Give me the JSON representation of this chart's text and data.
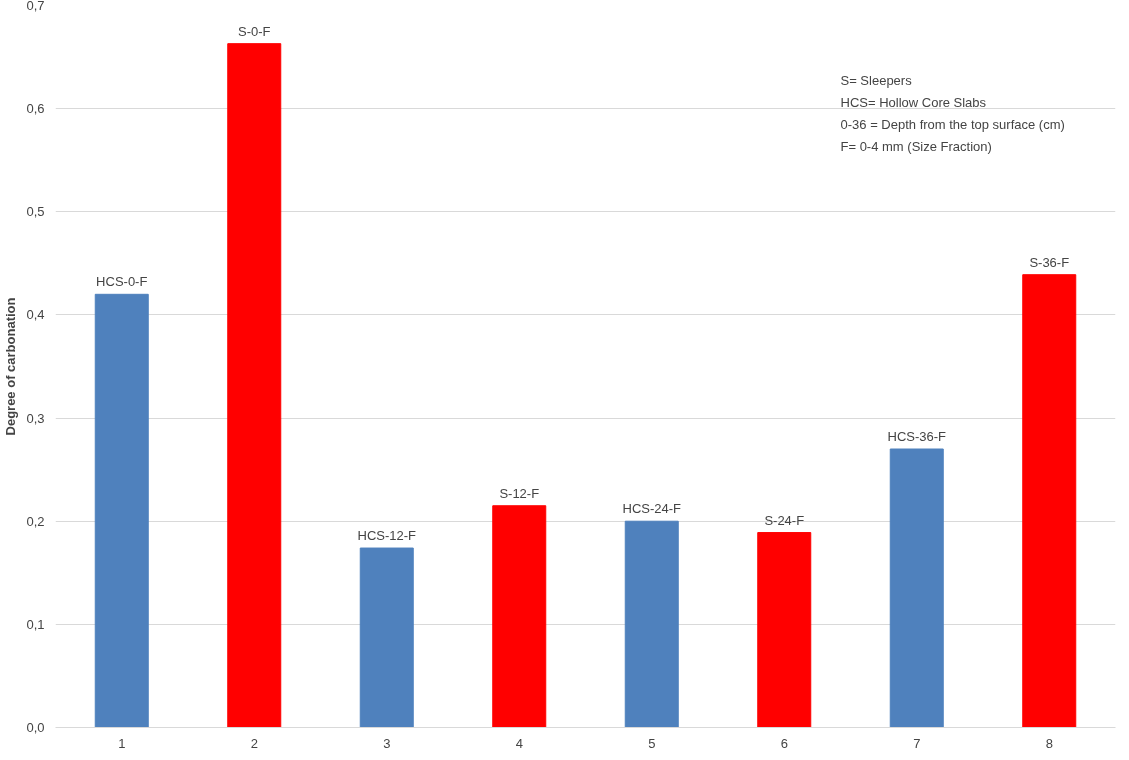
{
  "chart_data": {
    "type": "bar",
    "ylabel": "Degree of carbonation",
    "categories": [
      "1",
      "2",
      "3",
      "4",
      "5",
      "6",
      "7",
      "8"
    ],
    "values": [
      0.42,
      0.663,
      0.174,
      0.215,
      0.2,
      0.189,
      0.27,
      0.439
    ],
    "colors": [
      "#4f81bd",
      "#ff0000",
      "#4f81bd",
      "#ff0000",
      "#4f81bd",
      "#ff0000",
      "#4f81bd",
      "#ff0000"
    ],
    "ylim": [
      0,
      0.7
    ],
    "yticks": [
      {
        "value": 0,
        "label": "0,0"
      },
      {
        "value": 0.1,
        "label": "0,1"
      },
      {
        "value": 0.2,
        "label": "0,2"
      },
      {
        "value": 0.3,
        "label": "0,3"
      },
      {
        "value": 0.4,
        "label": "0,4"
      },
      {
        "value": 0.5,
        "label": "0,5"
      },
      {
        "value": 0.6,
        "label": "0,6"
      },
      {
        "value": 0.7,
        "label": "0,7"
      }
    ],
    "grid": "y",
    "annotations": [
      {
        "text": "HCS-0-F",
        "x": "1",
        "y": 0.42
      },
      {
        "text": "S-0-F",
        "x": "2",
        "y": 0.663
      },
      {
        "text": "HCS-12-F",
        "x": "3",
        "y": 0.174
      },
      {
        "text": "S-12-F",
        "x": "4",
        "y": 0.215
      },
      {
        "text": "HCS-24-F",
        "x": "5",
        "y": 0.2
      },
      {
        "text": "S-24-F",
        "x": "6",
        "y": 0.189
      },
      {
        "text": "HCS-36-F",
        "x": "7",
        "y": 0.27
      },
      {
        "text": "S-36-F",
        "x": "8",
        "y": 0.439
      },
      "S=       Sleepers",
      "HCS=   Hollow Core Slabs",
      "0-36 = Depth  from the top surface (cm)",
      "F=       0-4 mm (Size Fraction)"
    ]
  }
}
